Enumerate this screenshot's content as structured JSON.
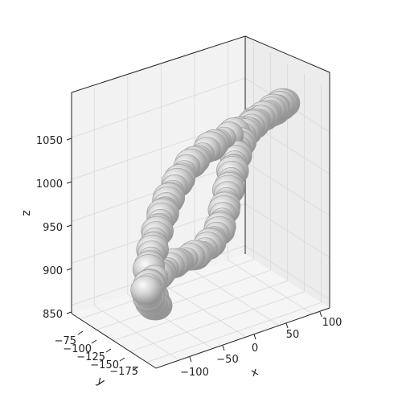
{
  "chart_data": {
    "type": "surface3d",
    "title": "",
    "subject": "colon",
    "xlabel": "x",
    "ylabel": "y",
    "zlabel": "z",
    "x_ticks": [
      -100,
      -50,
      0,
      50,
      100
    ],
    "y_ticks": [
      -75,
      -100,
      -125,
      -150,
      -175
    ],
    "z_ticks": [
      850,
      900,
      950,
      1000,
      1050
    ],
    "x_tick_labels": [
      "−100",
      "−50",
      "0",
      "50",
      "100"
    ],
    "y_tick_labels": [
      "−75",
      "−100",
      "−125",
      "−150",
      "−175"
    ],
    "z_tick_labels": [
      "850",
      "900",
      "950",
      "1000",
      "1050"
    ],
    "xlim": [
      -125,
      125
    ],
    "ylim": [
      -62,
      -192
    ],
    "zlim": [
      840,
      1100
    ],
    "centerline": [
      {
        "x": 60,
        "y": -175,
        "z": 888
      },
      {
        "x": 30,
        "y": -170,
        "z": 878
      },
      {
        "x": 0,
        "y": -165,
        "z": 873
      },
      {
        "x": -30,
        "y": -160,
        "z": 875
      },
      {
        "x": -55,
        "y": -150,
        "z": 875
      },
      {
        "x": -60,
        "y": -132,
        "z": 884
      },
      {
        "x": -28,
        "y": -118,
        "z": 898
      },
      {
        "x": -20,
        "y": -108,
        "z": 920
      },
      {
        "x": -24,
        "y": -102,
        "z": 950
      },
      {
        "x": -26,
        "y": -97,
        "z": 980
      },
      {
        "x": -24,
        "y": -94,
        "z": 1005
      },
      {
        "x": -20,
        "y": -90,
        "z": 1025
      },
      {
        "x": -5,
        "y": -85,
        "z": 1040
      },
      {
        "x": 20,
        "y": -80,
        "z": 1058
      },
      {
        "x": 45,
        "y": -78,
        "z": 1072
      },
      {
        "x": 72,
        "y": -82,
        "z": 1082
      },
      {
        "x": 92,
        "y": -95,
        "z": 1085
      },
      {
        "x": 95,
        "y": -115,
        "z": 1080
      },
      {
        "x": 85,
        "y": -138,
        "z": 1068
      },
      {
        "x": 70,
        "y": -155,
        "z": 1045
      },
      {
        "x": 60,
        "y": -165,
        "z": 1015
      },
      {
        "x": 55,
        "y": -170,
        "z": 990
      },
      {
        "x": 48,
        "y": -174,
        "z": 960
      },
      {
        "x": 48,
        "y": -178,
        "z": 930
      },
      {
        "x": 55,
        "y": -178,
        "z": 905
      },
      {
        "x": 60,
        "y": -175,
        "z": 888
      }
    ]
  }
}
